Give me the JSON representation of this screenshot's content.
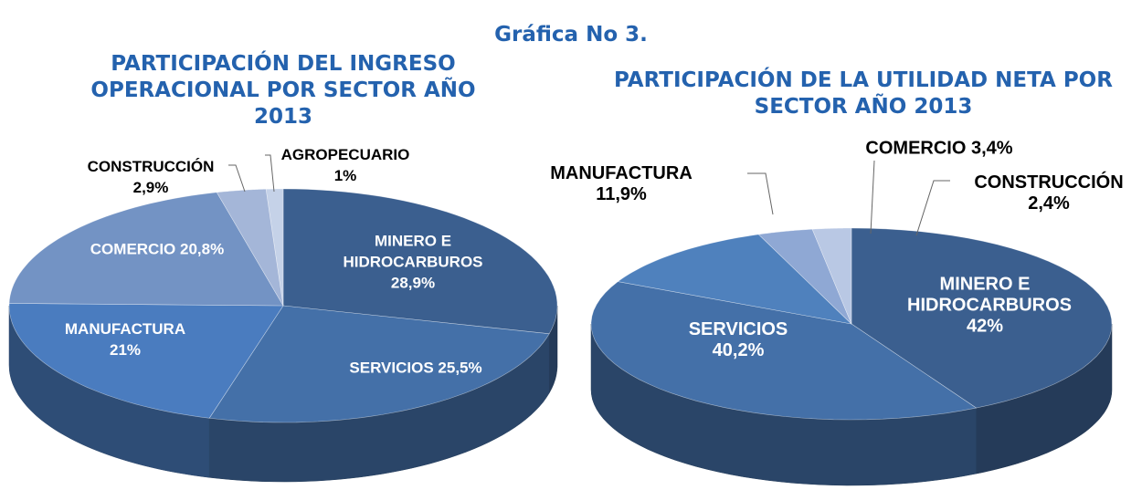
{
  "title": "Gráfica No 3.",
  "chart_data": [
    {
      "type": "pie3d",
      "title": "PARTICIPACIÓN DEL INGRESO OPERACIONAL POR SECTOR AÑO 2013",
      "categories": [
        "MINERO E HIDROCARBUROS",
        "SERVICIOS",
        "MANUFACTURA",
        "COMERCIO",
        "CONSTRUCCIÓN",
        "AGROPECUARIO"
      ],
      "values": [
        28.9,
        25.5,
        21,
        20.8,
        2.9,
        1
      ],
      "value_labels": [
        "28,9%",
        "25,5%",
        "21%",
        "20,8%",
        "2,9%",
        "1%"
      ],
      "colors": [
        "#3b5f8f",
        "#4470a8",
        "#4a7cbf",
        "#7393c4",
        "#a4b6d8",
        "#c5d2e8"
      ]
    },
    {
      "type": "pie3d",
      "title": "PARTICIPACIÓN DE LA UTILIDAD NETA POR SECTOR AÑO 2013",
      "categories": [
        "MINERO E HIDROCARBUROS",
        "SERVICIOS",
        "MANUFACTURA",
        "COMERCIO",
        "CONSTRUCCIÓN"
      ],
      "values": [
        42,
        40.2,
        11.9,
        3.4,
        2.4
      ],
      "value_labels": [
        "42%",
        "40,2%",
        "11,9%",
        "3,4%",
        "2,4%"
      ],
      "colors": [
        "#3b5f8f",
        "#4470a8",
        "#4f81bd",
        "#8fa8d4",
        "#b9c8e4"
      ]
    }
  ]
}
